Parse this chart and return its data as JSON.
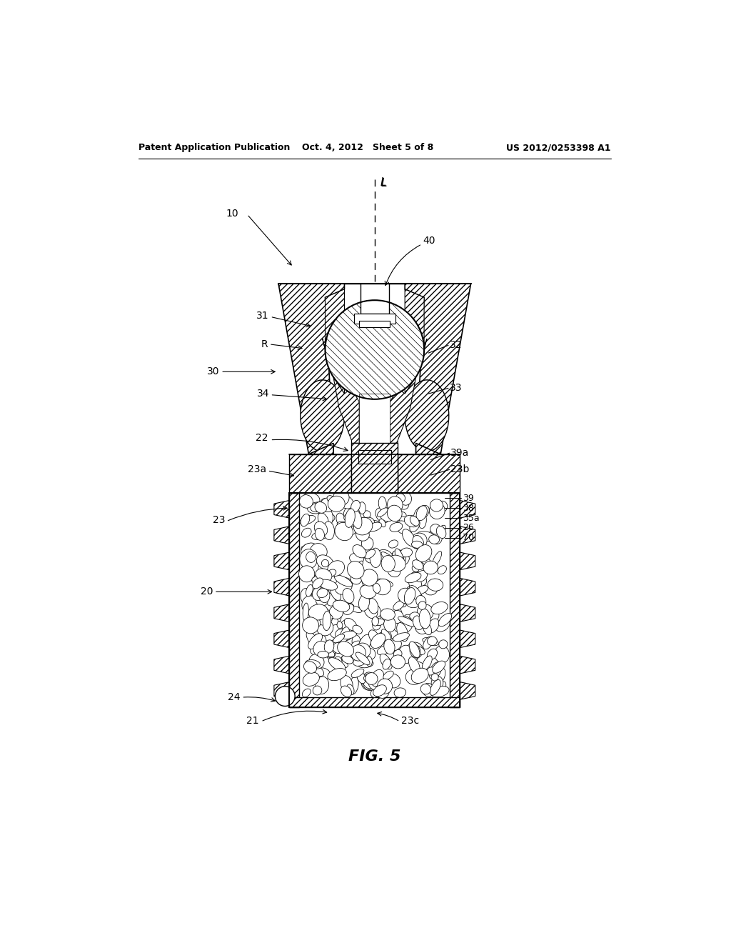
{
  "bg_color": "#ffffff",
  "header_left": "Patent Application Publication",
  "header_mid": "Oct. 4, 2012   Sheet 5 of 8",
  "header_right": "US 2012/0253398 A1",
  "fig_label": "FIG. 5"
}
